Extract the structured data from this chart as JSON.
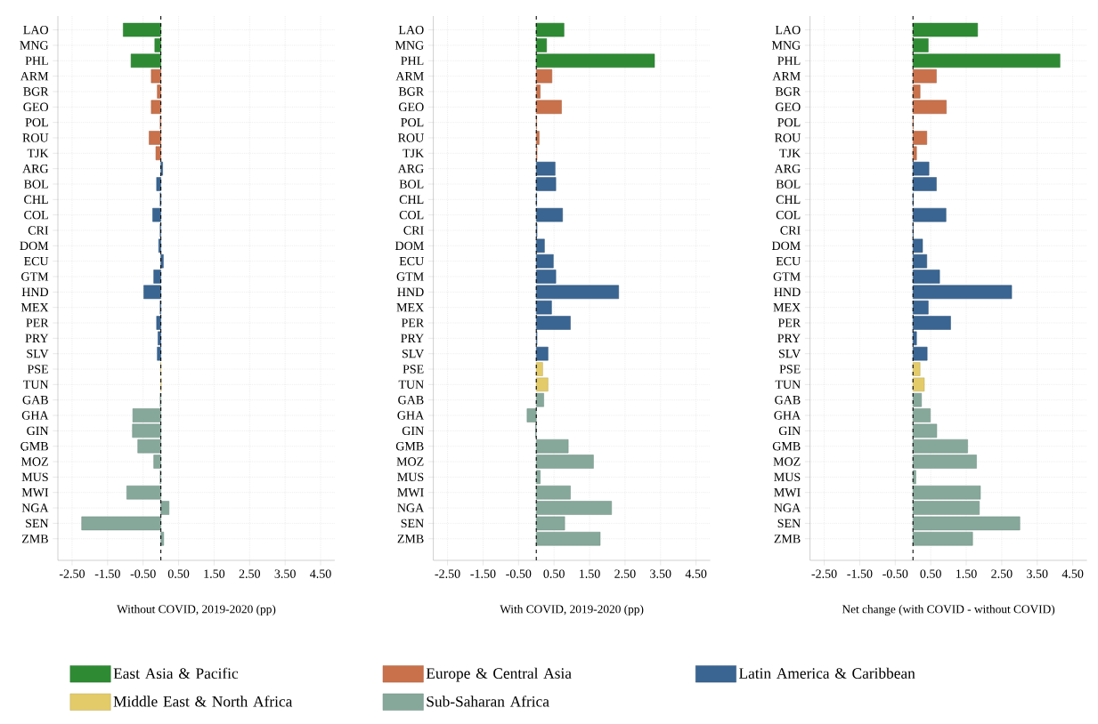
{
  "chart_data": [
    {
      "type": "bar",
      "orientation": "horizontal",
      "xlabel": "Without COVID, 2019-2020 (pp)",
      "categories": [
        "LAO",
        "MNG",
        "PHL",
        "ARM",
        "BGR",
        "GEO",
        "POL",
        "ROU",
        "TJK",
        "ARG",
        "BOL",
        "CHL",
        "COL",
        "CRI",
        "DOM",
        "ECU",
        "GTM",
        "HND",
        "MEX",
        "PER",
        "PRY",
        "SLV",
        "PSE",
        "TUN",
        "GAB",
        "GHA",
        "GIN",
        "GMB",
        "MOZ",
        "MUS",
        "MWI",
        "NGA",
        "SEN",
        "ZMB"
      ],
      "series": [
        {
          "name": "East Asia & Pacific",
          "color": "#2e8b34",
          "values": [
            -1.06,
            -0.17,
            -0.84,
            null,
            null,
            null,
            null,
            null,
            null,
            null,
            null,
            null,
            null,
            null,
            null,
            null,
            null,
            null,
            null,
            null,
            null,
            null,
            null,
            null,
            null,
            null,
            null,
            null,
            null,
            null,
            null,
            null,
            null,
            null
          ]
        },
        {
          "name": "Europe & Central Asia",
          "color": "#c8714b",
          "values": [
            null,
            null,
            null,
            -0.27,
            -0.1,
            -0.27,
            -0.02,
            -0.33,
            -0.14,
            null,
            null,
            null,
            null,
            null,
            null,
            null,
            null,
            null,
            null,
            null,
            null,
            null,
            null,
            null,
            null,
            null,
            null,
            null,
            null,
            null,
            null,
            null,
            null,
            null
          ]
        },
        {
          "name": "Latin America & Caribbean",
          "color": "#3a6592",
          "values": [
            null,
            null,
            null,
            null,
            null,
            null,
            null,
            null,
            null,
            0.05,
            -0.12,
            -0.02,
            -0.23,
            -0.02,
            -0.06,
            0.07,
            -0.2,
            -0.48,
            -0.02,
            -0.12,
            -0.08,
            -0.1,
            null,
            null,
            null,
            null,
            null,
            null,
            null,
            null,
            null,
            null,
            null,
            null
          ]
        },
        {
          "name": "Middle East & North Africa",
          "color": "#e3cb6a",
          "values": [
            null,
            null,
            null,
            null,
            null,
            null,
            null,
            null,
            null,
            null,
            null,
            null,
            null,
            null,
            null,
            null,
            null,
            null,
            null,
            null,
            null,
            null,
            -0.01,
            0.01,
            null,
            null,
            null,
            null,
            null,
            null,
            null,
            null,
            null,
            null
          ]
        },
        {
          "name": "Sub-Saharan Africa",
          "color": "#86a89b",
          "values": [
            null,
            null,
            null,
            null,
            null,
            null,
            null,
            null,
            null,
            null,
            null,
            null,
            null,
            null,
            null,
            null,
            null,
            null,
            null,
            null,
            null,
            null,
            null,
            null,
            -0.02,
            -0.79,
            -0.8,
            -0.65,
            -0.2,
            -0.02,
            -0.96,
            0.23,
            -2.23,
            0.08
          ]
        }
      ],
      "xlim": [
        -2.9,
        4.9
      ],
      "xticks": [
        {
          "value": -2.5,
          "label": "-2.50"
        },
        {
          "value": -1.5,
          "label": "-1.50"
        },
        {
          "value": -0.5,
          "label": "-0.50"
        },
        {
          "value": 0.5,
          "label": "0.50"
        },
        {
          "value": 1.5,
          "label": "1.50"
        },
        {
          "value": 2.5,
          "label": "2.50"
        },
        {
          "value": 3.5,
          "label": "3.50"
        },
        {
          "value": 4.5,
          "label": "4.50"
        }
      ],
      "ref_lines": [
        {
          "axis": "x",
          "value": 0,
          "color": "#000000",
          "line_style": "dashed"
        }
      ],
      "grid": true,
      "legend": "bottom"
    },
    {
      "type": "bar",
      "orientation": "horizontal",
      "xlabel": "With COVID, 2019-2020 (pp)",
      "categories": [
        "LAO",
        "MNG",
        "PHL",
        "ARM",
        "BGR",
        "GEO",
        "POL",
        "ROU",
        "TJK",
        "ARG",
        "BOL",
        "CHL",
        "COL",
        "CRI",
        "DOM",
        "ECU",
        "GTM",
        "HND",
        "MEX",
        "PER",
        "PRY",
        "SLV",
        "PSE",
        "TUN",
        "GAB",
        "GHA",
        "GIN",
        "GMB",
        "MOZ",
        "MUS",
        "MWI",
        "NGA",
        "SEN",
        "ZMB"
      ],
      "series": [
        {
          "color": "#2e8b34",
          "values": [
            0.78,
            0.29,
            3.33,
            null,
            null,
            null,
            null,
            null,
            null,
            null,
            null,
            null,
            null,
            null,
            null,
            null,
            null,
            null,
            null,
            null,
            null,
            null,
            null,
            null,
            null,
            null,
            null,
            null,
            null,
            null,
            null,
            null,
            null,
            null
          ]
        },
        {
          "color": "#c8714b",
          "values": [
            null,
            null,
            null,
            0.44,
            0.11,
            0.71,
            0.01,
            0.08,
            0.02,
            null,
            null,
            null,
            null,
            null,
            null,
            null,
            null,
            null,
            null,
            null,
            null,
            null,
            null,
            null,
            null,
            null,
            null,
            null,
            null,
            null,
            null,
            null,
            null,
            null
          ]
        },
        {
          "color": "#3a6592",
          "values": [
            null,
            null,
            null,
            null,
            null,
            null,
            null,
            null,
            null,
            0.53,
            0.55,
            0.01,
            0.74,
            0.02,
            0.23,
            0.48,
            0.55,
            2.32,
            0.43,
            0.96,
            0.02,
            0.33,
            null,
            null,
            null,
            null,
            null,
            null,
            null,
            null,
            null,
            null,
            null,
            null
          ]
        },
        {
          "color": "#e3cb6a",
          "values": [
            null,
            null,
            null,
            null,
            null,
            null,
            null,
            null,
            null,
            null,
            null,
            null,
            null,
            null,
            null,
            null,
            null,
            null,
            null,
            null,
            null,
            null,
            0.18,
            0.33,
            null,
            null,
            null,
            null,
            null,
            null,
            null,
            null,
            null,
            null
          ]
        },
        {
          "color": "#86a89b",
          "values": [
            null,
            null,
            null,
            null,
            null,
            null,
            null,
            null,
            null,
            null,
            null,
            null,
            null,
            null,
            null,
            null,
            null,
            null,
            null,
            null,
            null,
            null,
            null,
            null,
            0.21,
            -0.26,
            -0.02,
            0.9,
            1.61,
            0.11,
            0.96,
            2.12,
            0.8,
            1.8
          ]
        }
      ],
      "xlim": [
        -2.9,
        4.9
      ],
      "xticks": [
        {
          "value": -2.5,
          "label": "-2.50"
        },
        {
          "value": -1.5,
          "label": "-1.50"
        },
        {
          "value": -0.5,
          "label": "-0.50"
        },
        {
          "value": 0.5,
          "label": "0.50"
        },
        {
          "value": 1.5,
          "label": "1.50"
        },
        {
          "value": 2.5,
          "label": "2.50"
        },
        {
          "value": 3.5,
          "label": "3.50"
        },
        {
          "value": 4.5,
          "label": "4.50"
        }
      ],
      "ref_lines": [
        {
          "axis": "x",
          "value": 0,
          "color": "#000000",
          "line_style": "dashed"
        }
      ],
      "grid": true
    },
    {
      "type": "bar",
      "orientation": "horizontal",
      "xlabel": "Net change (with COVID - without COVID)",
      "categories": [
        "LAO",
        "MNG",
        "PHL",
        "ARM",
        "BGR",
        "GEO",
        "POL",
        "ROU",
        "TJK",
        "ARG",
        "BOL",
        "CHL",
        "COL",
        "CRI",
        "DOM",
        "ECU",
        "GTM",
        "HND",
        "MEX",
        "PER",
        "PRY",
        "SLV",
        "PSE",
        "TUN",
        "GAB",
        "GHA",
        "GIN",
        "GMB",
        "MOZ",
        "MUS",
        "MWI",
        "NGA",
        "SEN",
        "ZMB"
      ],
      "series": [
        {
          "color": "#2e8b34",
          "values": [
            1.82,
            0.43,
            4.14,
            null,
            null,
            null,
            null,
            null,
            null,
            null,
            null,
            null,
            null,
            null,
            null,
            null,
            null,
            null,
            null,
            null,
            null,
            null,
            null,
            null,
            null,
            null,
            null,
            null,
            null,
            null,
            null,
            null,
            null,
            null
          ]
        },
        {
          "color": "#c8714b",
          "values": [
            null,
            null,
            null,
            0.66,
            0.2,
            0.94,
            0.01,
            0.39,
            0.1,
            null,
            null,
            null,
            null,
            null,
            null,
            null,
            null,
            null,
            null,
            null,
            null,
            null,
            null,
            null,
            null,
            null,
            null,
            null,
            null,
            null,
            null,
            null,
            null,
            null
          ]
        },
        {
          "color": "#3a6592",
          "values": [
            null,
            null,
            null,
            null,
            null,
            null,
            null,
            null,
            null,
            0.45,
            0.66,
            0.01,
            0.93,
            0.01,
            0.27,
            0.39,
            0.75,
            2.78,
            0.43,
            1.06,
            0.1,
            0.4,
            null,
            null,
            null,
            null,
            null,
            null,
            null,
            null,
            null,
            null,
            null,
            null
          ]
        },
        {
          "color": "#e3cb6a",
          "values": [
            null,
            null,
            null,
            null,
            null,
            null,
            null,
            null,
            null,
            null,
            null,
            null,
            null,
            null,
            null,
            null,
            null,
            null,
            null,
            null,
            null,
            null,
            0.2,
            0.32,
            null,
            null,
            null,
            null,
            null,
            null,
            null,
            null,
            null,
            null
          ]
        },
        {
          "color": "#86a89b",
          "values": [
            null,
            null,
            null,
            null,
            null,
            null,
            null,
            null,
            null,
            null,
            null,
            null,
            null,
            null,
            null,
            null,
            null,
            null,
            null,
            null,
            null,
            null,
            null,
            null,
            0.24,
            0.49,
            0.67,
            1.54,
            1.79,
            0.08,
            1.9,
            1.87,
            3.01,
            1.68
          ]
        }
      ],
      "xlim": [
        -2.9,
        4.9
      ],
      "xticks": [
        {
          "value": -2.5,
          "label": "-2.50"
        },
        {
          "value": -1.5,
          "label": "-1.50"
        },
        {
          "value": -0.5,
          "label": "-0.50"
        },
        {
          "value": 0.5,
          "label": "0.50"
        },
        {
          "value": 1.5,
          "label": "1.50"
        },
        {
          "value": 2.5,
          "label": "2.50"
        },
        {
          "value": 3.5,
          "label": "3.50"
        },
        {
          "value": 4.5,
          "label": "4.50"
        }
      ],
      "ref_lines": [
        {
          "axis": "x",
          "value": 0,
          "color": "#000000",
          "line_style": "dashed"
        }
      ],
      "grid": true
    }
  ]
}
